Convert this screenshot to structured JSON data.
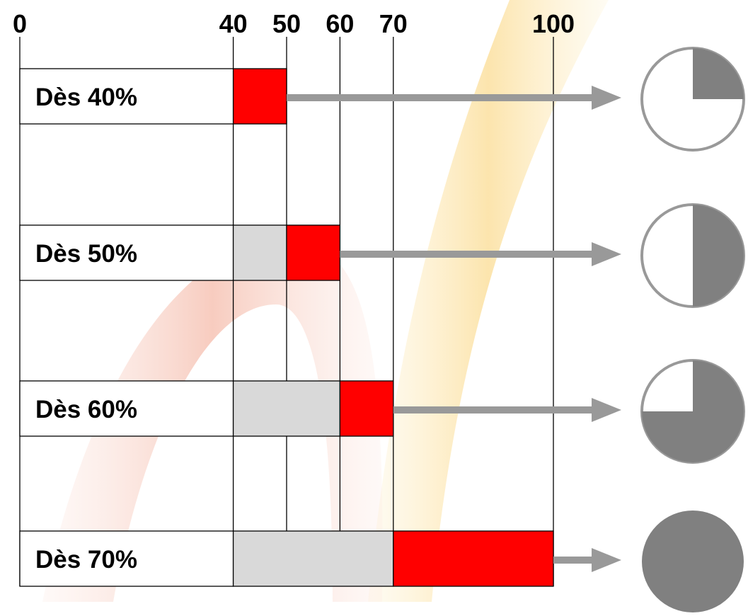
{
  "chart_data": {
    "type": "bar",
    "xlim": [
      0,
      100
    ],
    "ticks": [
      "0",
      "40",
      "50",
      "60",
      "70",
      "100"
    ],
    "tick_values": [
      0,
      40,
      50,
      60,
      70,
      100
    ],
    "rows": [
      {
        "label": "Dès 40%",
        "gray": [
          40,
          40
        ],
        "red": [
          40,
          50
        ],
        "pie_fraction": 0.25
      },
      {
        "label": "Dès 50%",
        "gray": [
          40,
          50
        ],
        "red": [
          50,
          60
        ],
        "pie_fraction": 0.5
      },
      {
        "label": "Dès 60%",
        "gray": [
          40,
          60
        ],
        "red": [
          60,
          70
        ],
        "pie_fraction": 0.75
      },
      {
        "label": "Dès 70%",
        "gray": [
          40,
          70
        ],
        "red": [
          70,
          100
        ],
        "pie_fraction": 1.0
      }
    ],
    "colors": {
      "red": "#ff0000",
      "gray": "#d9d9d9",
      "arrow": "#999999",
      "pie": "#808080",
      "pie_outline": "#999999"
    }
  }
}
